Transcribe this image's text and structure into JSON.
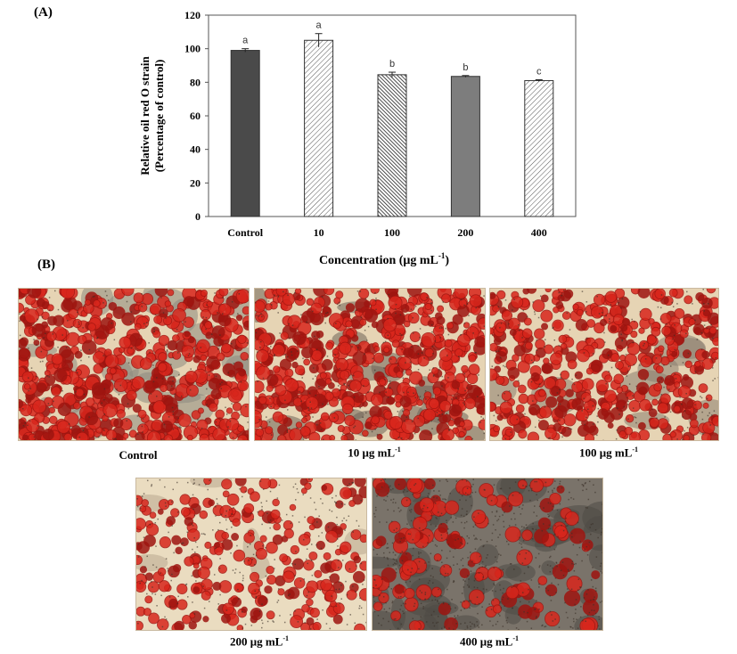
{
  "panel_a_label": "(A)",
  "panel_b_label": "(B)",
  "chart_data": {
    "type": "bar",
    "ylabel_line1": "Relative oil red O strain",
    "ylabel_line2": "(Percentage of control)",
    "xlabel_main": "Concentration (μg mL",
    "xlabel_sup": "-1",
    "xlabel_close": ")",
    "categories": [
      "Control",
      "10",
      "100",
      "200",
      "400"
    ],
    "values": [
      99,
      105,
      84.5,
      83.5,
      81
    ],
    "errors": [
      1,
      4,
      1.5,
      0.5,
      0.5
    ],
    "significance": [
      "a",
      "a",
      "b",
      "b",
      "c"
    ],
    "ylim": [
      0,
      120
    ],
    "yticks": [
      0,
      20,
      40,
      60,
      80,
      100,
      120
    ],
    "bar_fills": [
      "#4a4a4a",
      "hatch-light",
      "hatch-dense",
      "#7d7d7d",
      "hatch-light"
    ],
    "grid": false
  },
  "micrographs": [
    {
      "caption": "Control",
      "unit": "",
      "sup": ""
    },
    {
      "caption": "10 μg mL",
      "unit": "",
      "sup": "-1"
    },
    {
      "caption": "100 μg mL",
      "unit": "",
      "sup": "-1"
    },
    {
      "caption": "200 μg mL",
      "unit": "",
      "sup": "-1"
    },
    {
      "caption": "400 μg mL",
      "unit": "",
      "sup": "-1"
    }
  ],
  "colors": {
    "stain": "#d8261c",
    "stain_dark": "#9e1510",
    "background": "#e6d4b4",
    "background_dark": "#7a736a"
  }
}
